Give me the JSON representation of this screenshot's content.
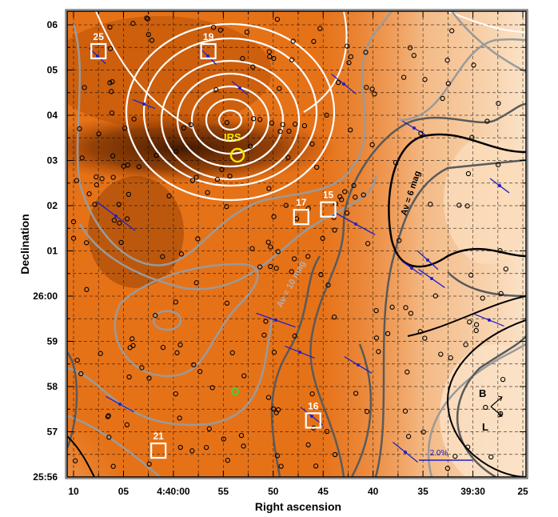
{
  "chart_data": {
    "type": "scatter",
    "xlabel": "Right ascension",
    "ylabel": "Declination",
    "x_ticks": [
      "10",
      "05",
      "4:40:00",
      "55",
      "50",
      "45",
      "40",
      "35",
      "39:30",
      "25"
    ],
    "y_ticks": [
      "06",
      "05",
      "04",
      "03",
      "02",
      "01",
      "26:00",
      "59",
      "58",
      "57",
      "25:56"
    ],
    "colors": {
      "map_dark": "#4a1e00",
      "map_mid": "#e46a10",
      "map_light": "#fbe3c8",
      "contour_white": "#ffffff",
      "contour_gray": "#9a9a9a",
      "contour_dark": "#5a5a5a",
      "vector": "#2020c8",
      "irs": "#f5e400",
      "box": "#ffffff"
    },
    "annotations": {
      "irs_label": "IRS",
      "av_high_label": "Av = 10 mag",
      "av_low_label": "Av = 6 mag",
      "scale_label": "2.0%",
      "compass_b": "B",
      "compass_l": "L"
    },
    "boxes": [
      {
        "label": "25",
        "ra": "4:40:07.5",
        "dec": "+25:05:25"
      },
      {
        "label": "19",
        "ra": "4:39:56.5",
        "dec": "+25:05:25"
      },
      {
        "label": "17",
        "ra": "4:39:47.2",
        "dec": "+25:01:45"
      },
      {
        "label": "15",
        "ra": "4:39:44.5",
        "dec": "+25:01:55"
      },
      {
        "label": "16",
        "ra": "4:39:46.0",
        "dec": "+24:57:15"
      },
      {
        "label": "21",
        "ra": "4:40:01.5",
        "dec": "+24:56:35"
      }
    ]
  }
}
